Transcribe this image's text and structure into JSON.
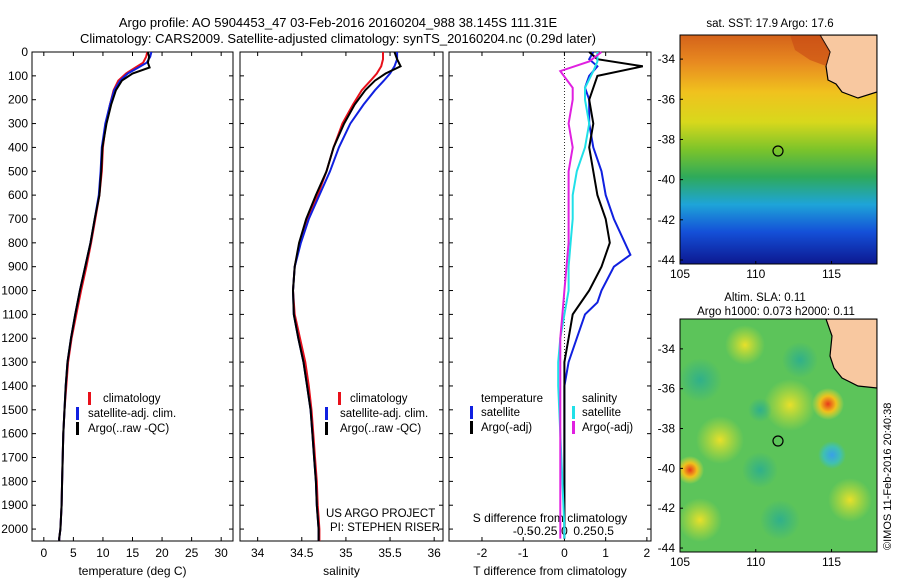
{
  "header": {
    "line1": "Argo profile: AO 5904453_47 03-Feb-2016 20160204_988 38.145S 111.31E",
    "line2": "Climatology: CARS2009. Satellite-adjusted climatology: synTS_20160204.nc (0.29d later)"
  },
  "colors": {
    "clim": "#e8101a",
    "sat": "#1020e0",
    "argo": "#000000",
    "sat_s": "#20e0e8",
    "argo_s": "#e020e0"
  },
  "depth_ticks": [
    "0",
    "100",
    "200",
    "300",
    "400",
    "500",
    "600",
    "700",
    "800",
    "900",
    "1000",
    "1100",
    "1200",
    "1300",
    "1400",
    "1500",
    "1600",
    "1700",
    "1800",
    "1900",
    "2000"
  ],
  "legend": {
    "clim": "climatology",
    "sat": "satellite-adj. clim.",
    "argo": "Argo(..raw -QC)"
  },
  "diff_legend": {
    "temp_head": "temperature",
    "sal_head": "salinity",
    "sat": "satellite",
    "argo": "Argo(-adj)"
  },
  "project": {
    "line1": "US ARGO PROJECT",
    "line2": "PI: STEPHEN RISER"
  },
  "sst_map": {
    "title": "sat. SST: 17.9 Argo: 17.6",
    "lon_ticks": [
      "105",
      "110",
      "115"
    ],
    "lat_ticks": [
      "-34",
      "-36",
      "-38",
      "-40",
      "-42",
      "-44"
    ]
  },
  "sla_map": {
    "title1": "Altim. SLA: 0.11",
    "title2": "Argo h1000: 0.073 h2000: 0.11",
    "lon_ticks": [
      "105",
      "110",
      "115"
    ],
    "lat_ticks": [
      "-34",
      "-36",
      "-38",
      "-40",
      "-42",
      "-44"
    ]
  },
  "credit": "©IMOS 11-Feb-2016 20:40:38",
  "chart_data": [
    {
      "type": "line",
      "name": "temperature profile",
      "xlabel": "temperature (deg C)",
      "xlim": [
        -2,
        32
      ],
      "ylim": [
        2050,
        0
      ],
      "xticks": [
        "0",
        "5",
        "10",
        "15",
        "20",
        "25",
        "30"
      ],
      "series": [
        {
          "name": "climatology",
          "color": "clim",
          "x": [
            17.5,
            17.3,
            16.8,
            15.5,
            13.9,
            12.6,
            11.8,
            11.2,
            10.5,
            10.0,
            9.8,
            9.4,
            8.7,
            8.0,
            7.2,
            6.3,
            5.5,
            4.7,
            4.1,
            3.8,
            3.5,
            3.3,
            3.2,
            3.1,
            3.0,
            2.9,
            2.8,
            2.7,
            2.6,
            2.6
          ],
          "y": [
            0,
            20,
            45,
            65,
            90,
            120,
            160,
            220,
            300,
            400,
            500,
            600,
            700,
            800,
            900,
            1000,
            1100,
            1200,
            1300,
            1400,
            1500,
            1600,
            1700,
            1800,
            1900,
            1950,
            2000,
            2020,
            2040,
            2050
          ]
        },
        {
          "name": "satellite-adj. clim.",
          "color": "sat",
          "x": [
            18.2,
            18.0,
            17.4,
            16.0,
            14.2,
            12.9,
            11.9,
            11.2,
            10.4,
            9.8,
            9.6,
            9.3,
            8.6,
            7.9,
            7.0,
            6.1,
            5.3,
            4.6,
            4.0,
            3.7,
            3.5,
            3.3,
            3.2,
            3.1,
            3.0,
            2.9,
            2.8,
            2.7,
            2.6,
            2.6
          ],
          "y": [
            0,
            20,
            45,
            65,
            90,
            120,
            160,
            220,
            300,
            400,
            500,
            600,
            700,
            800,
            900,
            1000,
            1100,
            1200,
            1300,
            1400,
            1500,
            1600,
            1700,
            1800,
            1900,
            1950,
            2000,
            2020,
            2040,
            2050
          ]
        },
        {
          "name": "Argo(..raw -QC)",
          "color": "argo",
          "x": [
            17.6,
            17.8,
            17.6,
            17.9,
            15.0,
            13.2,
            12.2,
            11.4,
            10.6,
            9.9,
            9.7,
            9.4,
            8.6,
            7.9,
            7.0,
            6.1,
            5.3,
            4.6,
            4.0,
            3.7,
            3.5,
            3.3,
            3.2,
            3.1,
            3.0,
            2.9,
            2.8,
            2.7,
            2.6,
            2.6
          ],
          "y": [
            0,
            20,
            45,
            65,
            90,
            120,
            160,
            220,
            300,
            400,
            500,
            600,
            700,
            800,
            900,
            1000,
            1100,
            1200,
            1300,
            1400,
            1500,
            1600,
            1700,
            1800,
            1900,
            1950,
            2000,
            2020,
            2040,
            2050
          ]
        }
      ]
    },
    {
      "type": "line",
      "name": "salinity profile",
      "xlabel": "salinity",
      "xlim": [
        33.8,
        36.1
      ],
      "ylim": [
        2050,
        0
      ],
      "xticks": [
        "34",
        "34.5",
        "35",
        "35.5",
        "36"
      ],
      "series": [
        {
          "name": "climatology",
          "color": "clim",
          "x": [
            35.42,
            35.42,
            35.4,
            35.35,
            35.28,
            35.18,
            35.08,
            34.96,
            34.86,
            34.78,
            34.68,
            34.56,
            34.48,
            34.42,
            34.4,
            34.42,
            34.48,
            34.54,
            34.58,
            34.61,
            34.63,
            34.65,
            34.67,
            34.68,
            34.69,
            34.7,
            34.7
          ],
          "y": [
            0,
            30,
            60,
            90,
            120,
            160,
            220,
            300,
            400,
            500,
            600,
            700,
            800,
            900,
            1000,
            1100,
            1200,
            1300,
            1400,
            1500,
            1600,
            1700,
            1800,
            1900,
            1950,
            2000,
            2050
          ]
        },
        {
          "name": "satellite-adj. clim.",
          "color": "sat",
          "x": [
            35.58,
            35.58,
            35.55,
            35.5,
            35.43,
            35.33,
            35.2,
            35.05,
            34.92,
            34.82,
            34.7,
            34.58,
            34.49,
            34.42,
            34.4,
            34.41,
            34.46,
            34.52,
            34.56,
            34.6,
            34.62,
            34.64,
            34.66,
            34.67,
            34.68,
            34.69,
            34.69
          ],
          "y": [
            0,
            30,
            60,
            90,
            120,
            160,
            220,
            300,
            400,
            500,
            600,
            700,
            800,
            900,
            1000,
            1100,
            1200,
            1300,
            1400,
            1500,
            1600,
            1700,
            1800,
            1900,
            1950,
            2000,
            2050
          ]
        },
        {
          "name": "Argo(..raw -QC)",
          "color": "argo",
          "x": [
            35.55,
            35.58,
            35.62,
            35.45,
            35.33,
            35.22,
            35.1,
            34.98,
            34.86,
            34.78,
            34.66,
            34.55,
            34.47,
            34.42,
            34.4,
            34.41,
            34.46,
            34.52,
            34.56,
            34.6,
            34.62,
            34.64,
            34.66,
            34.67,
            34.68,
            34.69,
            34.69
          ],
          "y": [
            0,
            30,
            60,
            90,
            120,
            160,
            220,
            300,
            400,
            500,
            600,
            700,
            800,
            900,
            1000,
            1100,
            1200,
            1300,
            1400,
            1500,
            1600,
            1700,
            1800,
            1900,
            1950,
            2000,
            2050
          ]
        }
      ]
    },
    {
      "type": "line",
      "name": "difference from climatology",
      "xlabel": "T difference from climatology",
      "x2label": "S difference from climatology",
      "xlim": [
        -2.8,
        2.1
      ],
      "ylim": [
        2050,
        0
      ],
      "xticks": [
        "-2",
        "-1",
        "0",
        "1",
        "2"
      ],
      "x2ticks": [
        "-0.5",
        "-0.25",
        "0",
        "0.25",
        "0.5"
      ],
      "series": [
        {
          "name": "temperature satellite",
          "color": "sat",
          "x": [
            0.7,
            0.6,
            0.8,
            0.6,
            0.5,
            0.6,
            0.6,
            0.7,
            0.9,
            1.0,
            1.2,
            1.6,
            1.2,
            0.9,
            0.8,
            0.5,
            0.3,
            0.1,
            0.0,
            0.0,
            0.0,
            0.0,
            0.0,
            0.0,
            0.0,
            0.0
          ],
          "y": [
            0,
            30,
            60,
            100,
            150,
            200,
            300,
            400,
            500,
            600,
            700,
            850,
            900,
            1000,
            1050,
            1100,
            1200,
            1300,
            1400,
            1500,
            1600,
            1700,
            1800,
            1900,
            2000,
            2040
          ]
        },
        {
          "name": "temperature Argo(-adj)",
          "color": "argo",
          "x": [
            0.6,
            0.8,
            1.9,
            0.8,
            0.7,
            0.6,
            0.7,
            0.6,
            0.7,
            0.8,
            1.0,
            1.1,
            0.9,
            0.6,
            0.4,
            0.2,
            0.1,
            0.0,
            0.0,
            0.0,
            0.0,
            0.0,
            0.0,
            0.0,
            0.0,
            0.0
          ],
          "y": [
            0,
            30,
            60,
            100,
            150,
            200,
            300,
            400,
            500,
            600,
            700,
            800,
            900,
            1000,
            1050,
            1100,
            1200,
            1300,
            1400,
            1500,
            1600,
            1700,
            1800,
            1900,
            2000,
            2040
          ]
        },
        {
          "name": "salinity satellite",
          "color": "sat_s",
          "x": [
            0.8,
            0.8,
            0.7,
            0.5,
            0.5,
            0.6,
            0.5,
            0.3,
            0.2,
            0.2,
            0.15,
            0.1,
            0.1,
            0.0,
            -0.1,
            -0.15,
            -0.15,
            -0.1,
            -0.05,
            0.0,
            0.0
          ],
          "y": [
            0,
            40,
            80,
            150,
            200,
            300,
            400,
            500,
            600,
            700,
            800,
            900,
            1000,
            1100,
            1200,
            1300,
            1400,
            1600,
            1800,
            2000,
            2040
          ]
        },
        {
          "name": "salinity Argo(-adj)",
          "color": "argo_s",
          "x": [
            0.9,
            0.6,
            -0.1,
            0.2,
            0.2,
            0.1,
            0.2,
            0.1,
            0.1,
            0.1,
            0.1,
            0.05,
            0.0,
            -0.05,
            -0.1,
            -0.1,
            -0.1,
            -0.1,
            -0.1,
            -0.1,
            -0.1
          ],
          "y": [
            0,
            40,
            80,
            150,
            200,
            300,
            400,
            500,
            600,
            700,
            800,
            900,
            1000,
            1100,
            1200,
            1300,
            1400,
            1600,
            1800,
            2000,
            2040
          ]
        }
      ]
    }
  ]
}
